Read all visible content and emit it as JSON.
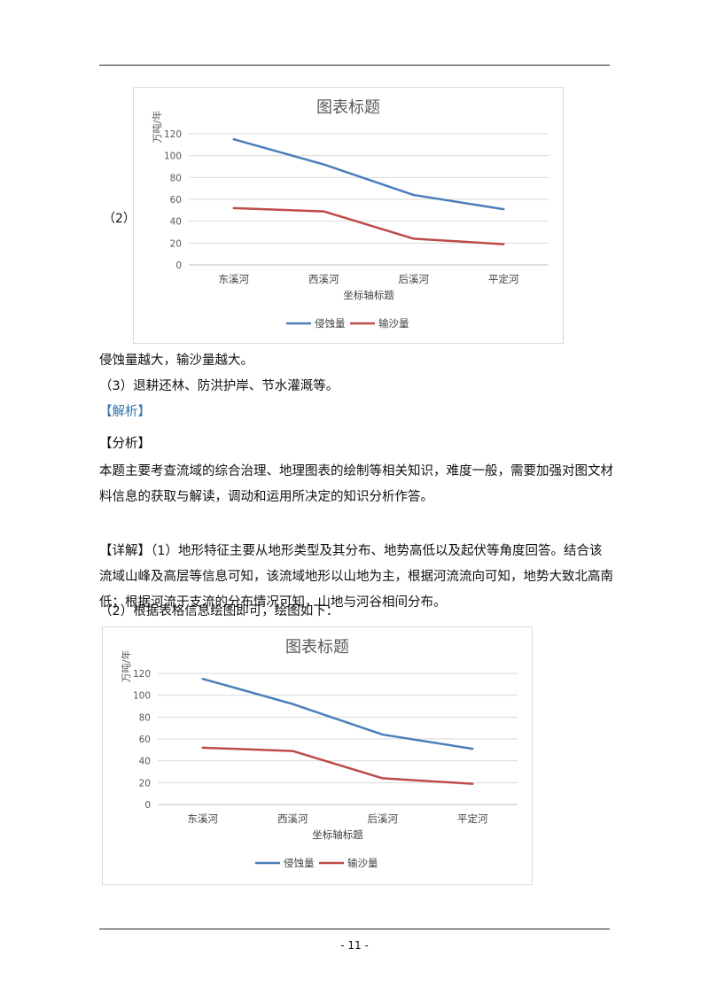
{
  "charts_label": "（2）",
  "paragraphs": {
    "p1": "侵蚀量越大，输沙量越大。",
    "p2": "（3）退耕还林、防洪护岸、节水灌溉等。",
    "p3": "【解析】",
    "p4": "【分析】",
    "p5": "本题主要考查流域的综合治理、地理图表的绘制等相关知识，难度一般，需要加强对图文材料信息的获取与解读，调动和运用所决定的知识分析作答。",
    "p6": "【详解】（1）地形特征主要从地形类型及其分布、地势高低以及起伏等角度回答。结合该流域山峰及高层等信息可知，该流域地形以山地为主，根据河流流向可知，地势大致北高南低；根据河流干支流的分布情况可知，山地与河谷相间分布。",
    "p7": "（2）根据表格信息绘图即可，绘图如下："
  },
  "page_number": "- 11 -",
  "colors": {
    "series1": "#4a7ebb",
    "series2": "#be4b48",
    "grid": "#d9d9d9",
    "link": "#2e74b5"
  },
  "chart_data": [
    {
      "type": "line",
      "title": "图表标题",
      "xlabel": "坐标轴标题",
      "ylabel": "万吨/年",
      "categories": [
        "东溪河",
        "西溪河",
        "后溪河",
        "平定河"
      ],
      "ylim": [
        0,
        120
      ],
      "yticks": [
        0,
        20,
        40,
        60,
        80,
        100,
        120
      ],
      "grid": true,
      "legend": "bottom",
      "series": [
        {
          "name": "侵蚀量",
          "values": [
            115,
            92,
            64,
            51
          ]
        },
        {
          "name": "输沙量",
          "values": [
            52,
            49,
            24,
            19
          ]
        }
      ]
    },
    {
      "type": "line",
      "title": "图表标题",
      "xlabel": "坐标轴标题",
      "ylabel": "万吨/年",
      "categories": [
        "东溪河",
        "西溪河",
        "后溪河",
        "平定河"
      ],
      "ylim": [
        0,
        120
      ],
      "yticks": [
        0,
        20,
        40,
        60,
        80,
        100,
        120
      ],
      "grid": true,
      "legend": "bottom",
      "series": [
        {
          "name": "侵蚀量",
          "values": [
            115,
            92,
            64,
            51
          ]
        },
        {
          "name": "输沙量",
          "values": [
            52,
            49,
            24,
            19
          ]
        }
      ]
    }
  ]
}
